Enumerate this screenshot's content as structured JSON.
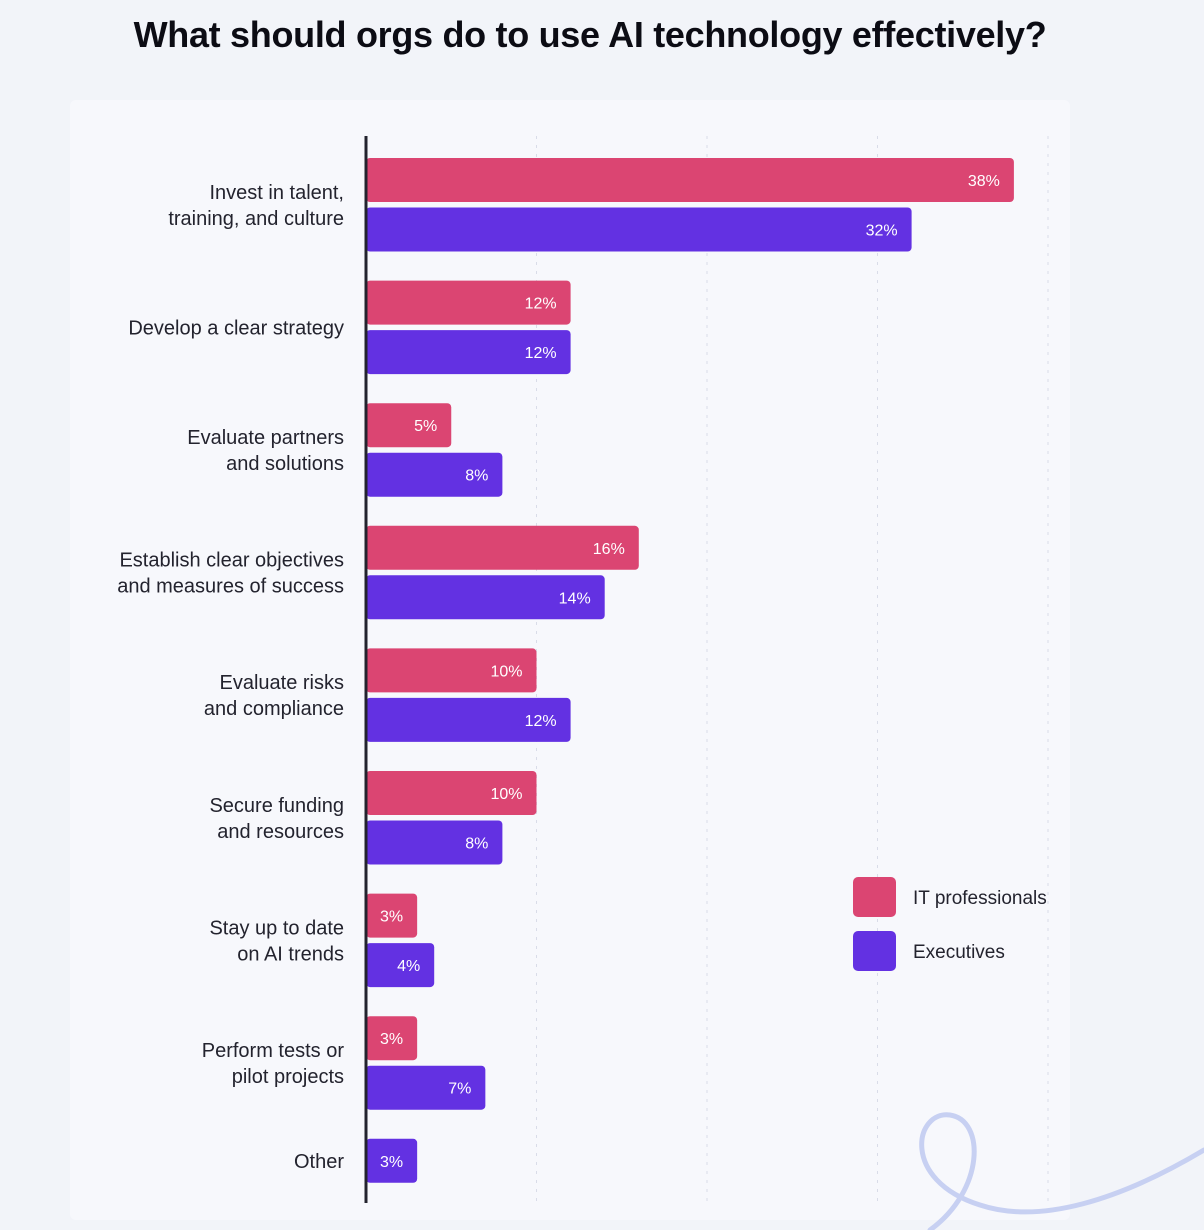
{
  "colors": {
    "it_professionals": "#db4572",
    "executives": "#6331e2",
    "axis": "#23232e",
    "background": "#f2f4f9"
  },
  "chart_data": {
    "type": "bar",
    "orientation": "horizontal",
    "title": "What should orgs do to use AI technology effectively?",
    "xlabel": "",
    "ylabel": "",
    "xlim": [
      0,
      40
    ],
    "grid": true,
    "legend_position": "right",
    "categories": [
      "Invest in talent,\ntraining, and culture",
      "Develop a clear strategy",
      "Evaluate partners\nand solutions",
      "Establish clear objectives\nand measures of success",
      "Evaluate risks\nand compliance",
      "Secure funding\nand resources",
      "Stay up to date\non AI trends",
      "Perform tests or\npilot projects",
      "Other"
    ],
    "series": [
      {
        "name": "IT professionals",
        "values": [
          38,
          12,
          5,
          16,
          10,
          10,
          3,
          3,
          null
        ],
        "labels": [
          "38%",
          "12%",
          "5%",
          "16%",
          "10%",
          "10%",
          "3%",
          "3%",
          null
        ]
      },
      {
        "name": "Executives",
        "values": [
          32,
          12,
          8,
          14,
          12,
          8,
          4,
          7,
          3
        ],
        "labels": [
          "32%",
          "12%",
          "8%",
          "14%",
          "12%",
          "8%",
          "4%",
          "7%",
          "3%"
        ]
      }
    ]
  }
}
